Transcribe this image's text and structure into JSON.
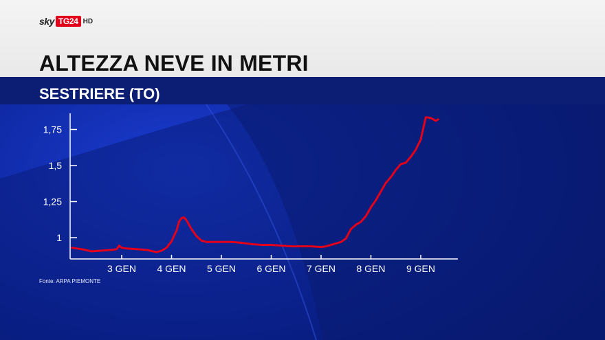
{
  "branding": {
    "sky": "sky",
    "tg": "TG24",
    "hd": "HD"
  },
  "colors": {
    "background": "#0a1f7a",
    "line": "#e3001b",
    "axis": "#ffffff"
  },
  "source": "Fonte: ARPA PIEMONTE",
  "chart_data": {
    "type": "line",
    "title": "ALTEZZA NEVE IN METRI",
    "subtitle": "SESTRIERE (TO)",
    "xlabel": "",
    "ylabel": "",
    "xlim": [
      2.0,
      9.8
    ],
    "ylim": [
      0.9,
      1.85
    ],
    "x_ticks": [
      {
        "value": 3,
        "label": "3 GEN"
      },
      {
        "value": 4,
        "label": "4 GEN"
      },
      {
        "value": 5,
        "label": "5 GEN"
      },
      {
        "value": 6,
        "label": "6 GEN"
      },
      {
        "value": 7,
        "label": "7 GEN"
      },
      {
        "value": 8,
        "label": "8 GEN"
      },
      {
        "value": 9,
        "label": "9 GEN"
      }
    ],
    "y_ticks": [
      {
        "value": 1.0,
        "label": "1"
      },
      {
        "value": 1.25,
        "label": "1,25"
      },
      {
        "value": 1.5,
        "label": "1,5"
      },
      {
        "value": 1.75,
        "label": "1,75"
      }
    ],
    "grid": false,
    "series": [
      {
        "x": [
          2.0,
          2.2,
          2.4,
          2.6,
          2.8,
          2.9,
          2.95,
          3.0,
          3.1,
          3.3,
          3.5,
          3.7,
          3.8,
          3.9,
          4.0,
          4.1,
          4.15,
          4.2,
          4.25,
          4.3,
          4.35,
          4.4,
          4.5,
          4.6,
          4.7,
          4.8,
          5.0,
          5.2,
          5.4,
          5.6,
          5.8,
          6.0,
          6.2,
          6.4,
          6.6,
          6.8,
          7.0,
          7.1,
          7.2,
          7.3,
          7.4,
          7.5,
          7.6,
          7.7,
          7.8,
          7.9,
          8.0,
          8.1,
          8.2,
          8.3,
          8.4,
          8.5,
          8.6,
          8.7,
          8.8,
          8.9,
          9.0,
          9.1,
          9.2,
          9.3,
          9.35
        ],
        "y": [
          0.93,
          0.92,
          0.905,
          0.91,
          0.915,
          0.92,
          0.945,
          0.93,
          0.925,
          0.92,
          0.915,
          0.9,
          0.91,
          0.93,
          0.975,
          1.05,
          1.11,
          1.135,
          1.14,
          1.12,
          1.09,
          1.06,
          1.01,
          0.98,
          0.97,
          0.97,
          0.97,
          0.97,
          0.965,
          0.955,
          0.95,
          0.95,
          0.945,
          0.94,
          0.94,
          0.94,
          0.935,
          0.94,
          0.95,
          0.96,
          0.97,
          0.995,
          1.06,
          1.09,
          1.11,
          1.15,
          1.21,
          1.26,
          1.32,
          1.38,
          1.42,
          1.47,
          1.51,
          1.52,
          1.56,
          1.61,
          1.68,
          1.835,
          1.83,
          1.81,
          1.82
        ]
      }
    ]
  }
}
